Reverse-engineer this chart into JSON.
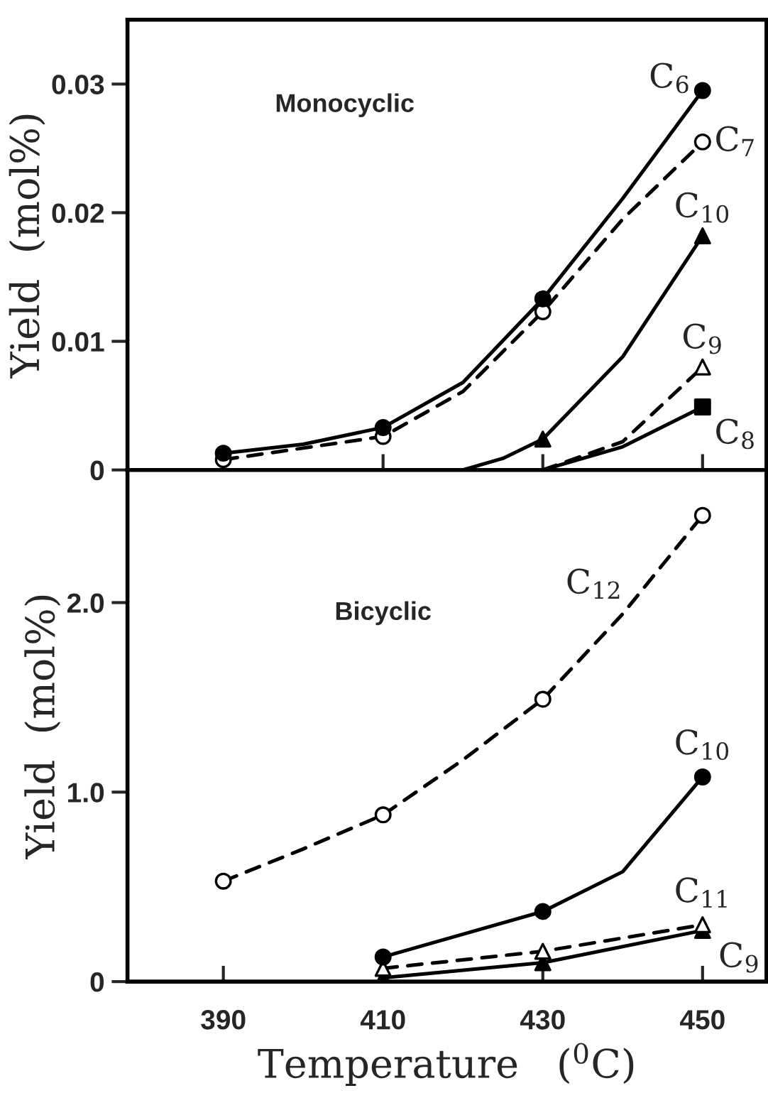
{
  "chart_data": [
    {
      "type": "line",
      "ylabel": "Yield  (mol%)",
      "annotations": [
        "Monocyclic"
      ],
      "xlim": [
        378,
        458
      ],
      "xticks": [
        {
          "value": 390,
          "label": null
        },
        {
          "value": 410,
          "label": null
        },
        {
          "value": 430,
          "label": null
        },
        {
          "value": 450,
          "label": null
        }
      ],
      "ylim": [
        0,
        0.035
      ],
      "yticks": [
        0,
        0.01,
        0.02,
        0.03
      ],
      "tick_labels": "y",
      "grid": false,
      "legend": false,
      "series": [
        {
          "line_style": "solid",
          "marker": "none",
          "color": "#000000",
          "x": [
            390,
            400,
            410,
            420,
            430,
            440,
            450
          ],
          "values": [
            0.0013,
            0.002,
            0.0033,
            0.0068,
            0.0133,
            0.0211,
            0.0295
          ]
        },
        {
          "line_style": "dashed",
          "marker": "none",
          "color": "#000000",
          "x": [
            390,
            400,
            410,
            420,
            430,
            440,
            450
          ],
          "values": [
            0.0008,
            0.0017,
            0.0026,
            0.0061,
            0.0123,
            0.0195,
            0.0255
          ]
        },
        {
          "line_style": "solid",
          "marker": "none",
          "color": "#000000",
          "x": [
            420,
            425,
            430,
            440,
            450
          ],
          "values": [
            0,
            0.0009,
            0.0024,
            0.0088,
            0.0182
          ]
        },
        {
          "line_style": "dashed",
          "marker": "none",
          "color": "#000000",
          "x": [
            430,
            440,
            450
          ],
          "values": [
            0,
            0.0022,
            0.008
          ]
        },
        {
          "line_style": "solid",
          "marker": "none",
          "color": "#000000",
          "x": [
            430,
            440,
            450
          ],
          "values": [
            0,
            0.0018,
            0.0049
          ]
        },
        {
          "type": "scatter",
          "name": "C$_{6}$",
          "marker": "circle",
          "color": "#000000",
          "x": [
            390,
            410,
            430,
            450
          ],
          "values": [
            0.0013,
            0.0033,
            0.0133,
            0.0295
          ]
        },
        {
          "type": "scatter",
          "name": "C$_{7}$",
          "marker": "circle",
          "color": "#ffffff",
          "x": [
            390,
            410,
            430,
            450
          ],
          "values": [
            0.0008,
            0.0026,
            0.0123,
            0.0255
          ]
        },
        {
          "type": "scatter",
          "name": "C$_{10}$",
          "marker": "triangle",
          "color": "#000000",
          "x": [
            430,
            450
          ],
          "values": [
            0.0024,
            0.0182
          ]
        },
        {
          "type": "scatter",
          "name": "C$_{9}$",
          "marker": "triangle",
          "color": "#ffffff",
          "x": [
            450
          ],
          "values": [
            0.008
          ]
        },
        {
          "type": "scatter",
          "name": "C$_{8}$",
          "marker": "square",
          "color": "#000000",
          "x": [
            450
          ],
          "values": [
            0.0049
          ]
        }
      ]
    },
    {
      "type": "line",
      "xlabel": "Temperature   ($^{0}$C)",
      "ylabel": "Yield  (mol%)",
      "annotations": [
        "Bicyclic"
      ],
      "xlim": [
        378,
        458
      ],
      "xticks": [
        390,
        410,
        430,
        450
      ],
      "ylim": [
        0,
        2.7
      ],
      "yticks": [
        0,
        {
          "value": 1.0,
          "label": "1.0"
        },
        {
          "value": 2.0,
          "label": "2.0"
        }
      ],
      "grid": false,
      "legend": false,
      "series": [
        {
          "line_style": "dashed",
          "marker": "none",
          "color": "#000000",
          "x": [
            390,
            400,
            410,
            420,
            430,
            440,
            450
          ],
          "values": [
            0.53,
            0.7,
            0.88,
            1.17,
            1.49,
            1.94,
            2.46
          ]
        },
        {
          "line_style": "solid",
          "marker": "none",
          "color": "#000000",
          "x": [
            410,
            420,
            430,
            440,
            450
          ],
          "values": [
            0.13,
            0.25,
            0.37,
            0.58,
            1.08
          ]
        },
        {
          "line_style": "dashed",
          "marker": "none",
          "color": "#000000",
          "x": [
            410,
            430,
            450
          ],
          "values": [
            0.07,
            0.16,
            0.3
          ]
        },
        {
          "line_style": "solid",
          "marker": "none",
          "color": "#000000",
          "x": [
            410,
            430,
            450
          ],
          "values": [
            0.02,
            0.1,
            0.27
          ]
        },
        {
          "type": "scatter",
          "name": "C$_{12}$",
          "marker": "circle",
          "color": "#ffffff",
          "x": [
            390,
            410,
            430,
            450
          ],
          "values": [
            0.53,
            0.88,
            1.49,
            2.46
          ]
        },
        {
          "type": "scatter",
          "name": "C$_{10}$",
          "marker": "circle",
          "color": "#000000",
          "x": [
            410,
            430,
            450
          ],
          "values": [
            0.13,
            0.37,
            1.08
          ]
        },
        {
          "type": "scatter",
          "name": "C$_{11}$",
          "marker": "triangle",
          "color": "#ffffff",
          "x": [
            410,
            430,
            450
          ],
          "values": [
            0.07,
            0.16,
            0.3
          ]
        },
        {
          "type": "scatter",
          "name": "C$_{9}$",
          "marker": "triangle",
          "color": "#000000",
          "x": [
            410,
            430,
            450
          ],
          "values": [
            0.02,
            0.1,
            0.27
          ]
        }
      ]
    }
  ]
}
